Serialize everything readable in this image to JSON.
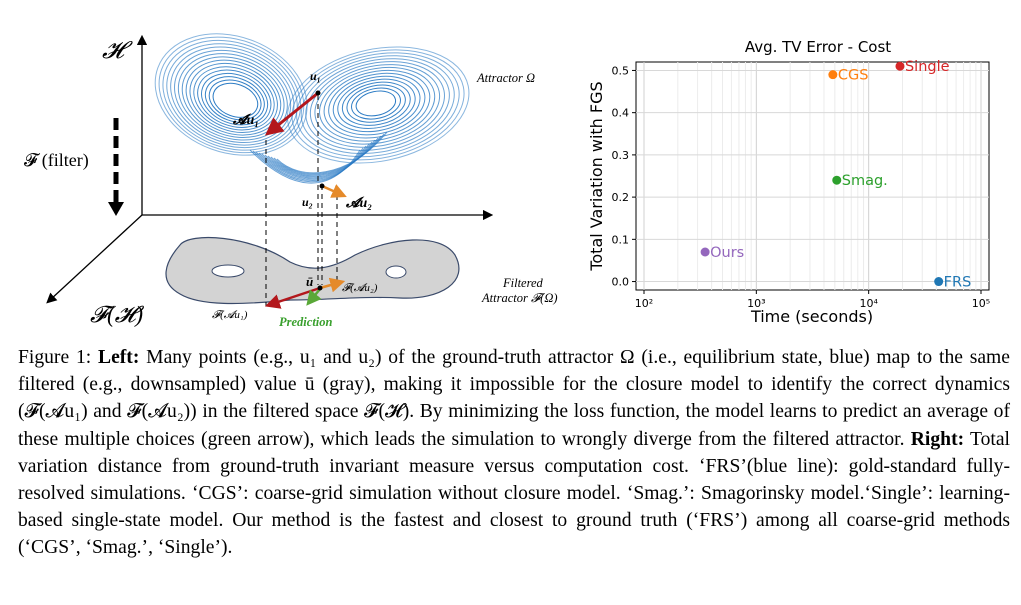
{
  "left_figure": {
    "axis_H": "𝓗",
    "axis_FH": "𝓕(𝓗)",
    "filter_label": "𝓕 (filter)",
    "attractor_label": "Attractor Ω",
    "filtered_label_1": "Filtered",
    "filtered_label_2": "Attractor 𝓕(Ω)",
    "u1": "u₁",
    "u2": "u₂",
    "Au1": "𝓐u₁",
    "Au2": "𝓐u₂",
    "ubar": "ū",
    "FAu1": "𝓕(𝓐u₁)",
    "FAu2": "𝓕(𝓐u₂)",
    "prediction": "Prediction",
    "colors": {
      "attractor": "#2b7bc4",
      "filtered": "#d3d3d3",
      "red_arrow": "#b3171c",
      "orange_arrow": "#e58a2a",
      "green_arrow": "#5aa838"
    }
  },
  "chart_data": {
    "type": "scatter",
    "title": "Avg. TV Error - Cost",
    "xlabel": "Time (seconds)",
    "ylabel": "Total Variation with FGS",
    "xscale": "log",
    "xlim": [
      100,
      100000
    ],
    "ylim": [
      -0.02,
      0.52
    ],
    "xticks": [
      100,
      1000,
      10000,
      100000
    ],
    "xtick_labels": [
      "10²",
      "10³",
      "10⁴",
      "10⁵"
    ],
    "yticks": [
      0.0,
      0.1,
      0.2,
      0.3,
      0.4,
      0.5
    ],
    "ytick_labels": [
      "0.0",
      "0.1",
      "0.2",
      "0.3",
      "0.4",
      "0.5"
    ],
    "grid": true,
    "points": [
      {
        "label": "Single",
        "x": 19000,
        "y": 0.51,
        "color": "#d62728"
      },
      {
        "label": "CGS",
        "x": 4800,
        "y": 0.49,
        "color": "#ff7f0e"
      },
      {
        "label": "Smag.",
        "x": 5200,
        "y": 0.24,
        "color": "#2ca02c"
      },
      {
        "label": "Ours",
        "x": 350,
        "y": 0.07,
        "color": "#9467bd"
      },
      {
        "label": "FRS",
        "x": 42000,
        "y": 0.0,
        "color": "#1f77b4"
      }
    ]
  },
  "caption": {
    "figure_label": "Figure 1:",
    "left_label": "Left:",
    "left_text": "Many points (e.g., u₁ and u₂) of the ground-truth attractor Ω (i.e., equilibrium state, blue) map to the same filtered (e.g., downsampled) value ū (gray), making it impossible for the closure model to identify the correct dynamics (𝓕(𝓐u₁) and 𝓕(𝓐u₂)) in the filtered space 𝓕(𝓗). By minimizing the loss function, the model learns to predict an average of these multiple choices (green arrow), which leads the simulation to wrongly diverge from the filtered attractor.",
    "right_label": "Right:",
    "right_text": "Total variation distance from ground-truth invariant measure versus computation cost. ‘FRS’(blue line): gold-standard fully-resolved simulations. ‘CGS’: coarse-grid simulation without closure model. ‘Smag.’: Smagorinsky model.‘Single’: learning-based single-state model. Our method is the fastest and closest to ground truth (‘FRS’) among all coarse-grid methods (‘CGS’, ‘Smag.’, ‘Single’)."
  }
}
